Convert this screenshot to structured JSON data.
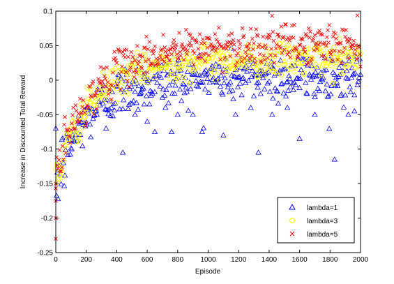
{
  "chart_data": {
    "type": "scatter",
    "title": "",
    "xlabel": "Episode",
    "ylabel": "Increase in Discounted Total Reward",
    "xlim": [
      0,
      2000
    ],
    "ylim": [
      -0.25,
      0.1
    ],
    "xticks": [
      0,
      200,
      400,
      600,
      800,
      1000,
      1200,
      1400,
      1600,
      1800,
      2000
    ],
    "yticks": [
      -0.25,
      -0.2,
      -0.15,
      -0.1,
      -0.05,
      0,
      0.05,
      0.1
    ],
    "xtick_labels": [
      "0",
      "200",
      "400",
      "600",
      "800",
      "1000",
      "1200",
      "1400",
      "1600",
      "1800",
      "2000"
    ],
    "ytick_labels": [
      "-0.25",
      "-0.2",
      "-0.15",
      "-0.1",
      "-0.05",
      "0",
      "0.05",
      "0.1"
    ],
    "grid": false,
    "legend": {
      "position": "bottom-right",
      "entries": [
        "lambda=1",
        "lambda=3",
        "lambda=5"
      ]
    },
    "series": [
      {
        "name": "lambda=1",
        "marker": "triangle",
        "color": "#0000ff",
        "sample_every": 5,
        "trend": {
          "start": -0.15,
          "plateau": 0.005,
          "tau": 220
        },
        "spread": 0.018,
        "outliers": [
          [
            330,
            -0.07
          ],
          [
            440,
            -0.105
          ],
          [
            520,
            -0.05
          ],
          [
            580,
            -0.035
          ],
          [
            600,
            -0.06
          ],
          [
            650,
            -0.075
          ],
          [
            720,
            -0.04
          ],
          [
            760,
            -0.075
          ],
          [
            800,
            -0.05
          ],
          [
            900,
            -0.05
          ],
          [
            960,
            -0.075
          ],
          [
            1100,
            -0.08
          ],
          [
            1180,
            -0.05
          ],
          [
            1280,
            -0.04
          ],
          [
            1330,
            -0.105
          ],
          [
            1420,
            -0.05
          ],
          [
            1520,
            -0.04
          ],
          [
            1600,
            -0.085
          ],
          [
            1700,
            -0.05
          ],
          [
            1830,
            -0.115
          ],
          [
            1920,
            -0.05
          ],
          [
            1960,
            -0.045
          ]
        ]
      },
      {
        "name": "lambda=3",
        "marker": "circle",
        "color": "#ffff00",
        "sample_every": 5,
        "trend": {
          "start": -0.14,
          "plateau": 0.03,
          "tau": 240
        },
        "spread": 0.012,
        "outliers": []
      },
      {
        "name": "lambda=5",
        "marker": "x",
        "color": "#ff0000",
        "sample_every": 5,
        "trend": {
          "start": -0.13,
          "plateau": 0.052,
          "tau": 260
        },
        "spread": 0.014,
        "outliers": [
          [
            0,
            -0.23
          ],
          [
            0,
            -0.2
          ],
          [
            0,
            -0.175
          ],
          [
            0,
            -0.15
          ]
        ]
      }
    ]
  }
}
